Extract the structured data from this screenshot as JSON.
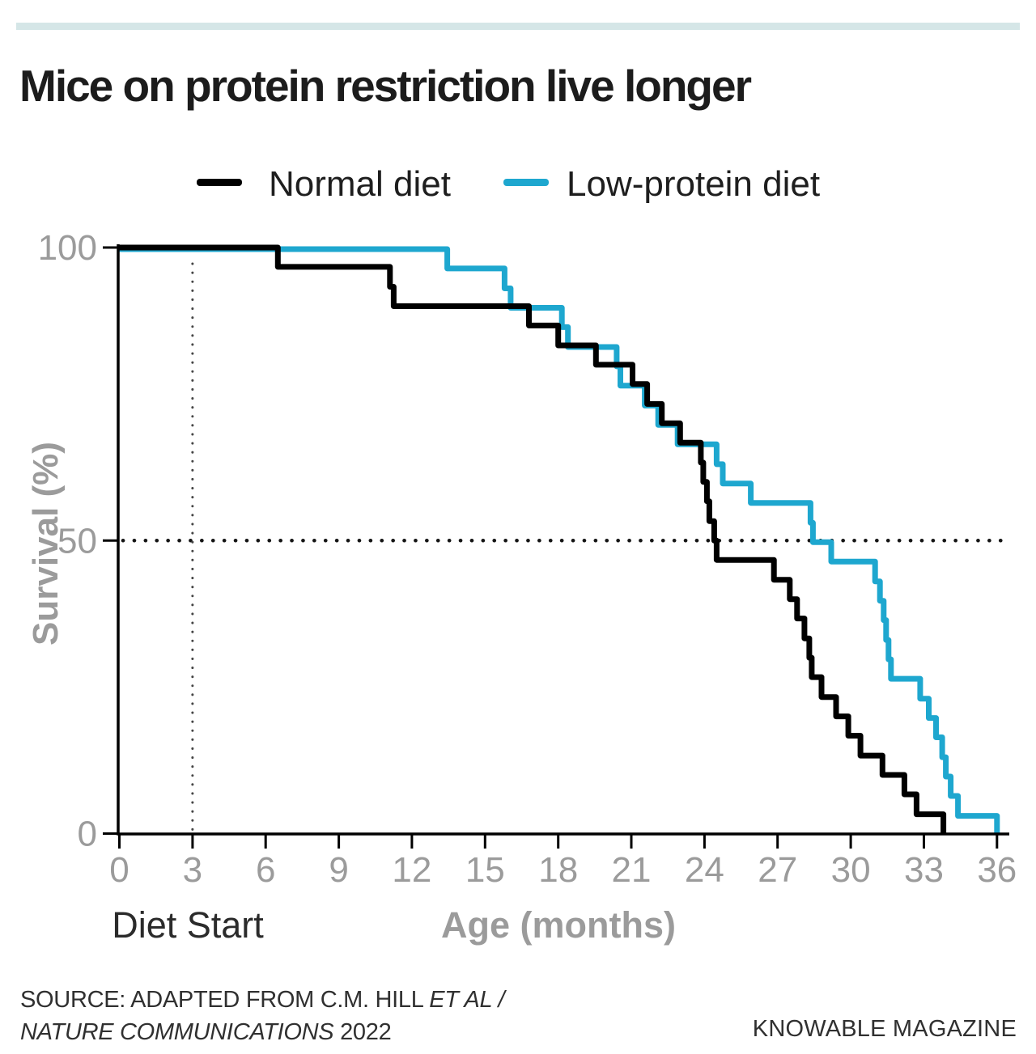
{
  "top_bar": {
    "color": "#d5e6e7"
  },
  "title": "Mice on protein restriction live longer",
  "legend": {
    "items": [
      {
        "label": "Normal diet",
        "color": "#000000"
      },
      {
        "label": "Low-protein diet",
        "color": "#1ea7cf"
      }
    ]
  },
  "axes": {
    "y_title": "Survival (%)",
    "x_title": "Age (months)",
    "diet_start_label": "Diet Start"
  },
  "chart_data": {
    "type": "line",
    "subtype": "survival-step",
    "title": "Mice on protein restriction live longer",
    "xlabel": "Age (months)",
    "ylabel": "Survival (%)",
    "xlim": [
      0,
      36
    ],
    "ylim": [
      0,
      100
    ],
    "x_ticks": [
      0,
      3,
      6,
      9,
      12,
      15,
      18,
      21,
      24,
      27,
      30,
      33,
      36
    ],
    "y_ticks": [
      0,
      50,
      100
    ],
    "grid": false,
    "legend_position": "top",
    "reference_lines": {
      "horizontal_dotted_y": 50,
      "vertical_dotted_x": 3,
      "vertical_dotted_label": "Diet Start"
    },
    "series": [
      {
        "name": "Normal diet",
        "color": "#000000",
        "steps": [
          [
            0,
            100
          ],
          [
            6.5,
            96.7
          ],
          [
            11.1,
            93.3
          ],
          [
            11.25,
            90
          ],
          [
            16.8,
            86.7
          ],
          [
            18.0,
            83.3
          ],
          [
            19.55,
            80
          ],
          [
            21.05,
            76.7
          ],
          [
            21.65,
            73.3
          ],
          [
            22.25,
            70
          ],
          [
            23.0,
            66.7
          ],
          [
            23.85,
            63.3
          ],
          [
            23.95,
            60
          ],
          [
            24.1,
            56.7
          ],
          [
            24.2,
            53.3
          ],
          [
            24.4,
            50
          ],
          [
            24.5,
            46.7
          ],
          [
            26.85,
            43.3
          ],
          [
            27.5,
            40
          ],
          [
            27.8,
            36.7
          ],
          [
            28.1,
            33.3
          ],
          [
            28.3,
            30
          ],
          [
            28.4,
            26.7
          ],
          [
            28.8,
            23.3
          ],
          [
            29.4,
            20
          ],
          [
            29.9,
            16.7
          ],
          [
            30.4,
            13.3
          ],
          [
            31.3,
            10
          ],
          [
            32.2,
            6.7
          ],
          [
            32.7,
            3.3
          ],
          [
            33.8,
            0
          ]
        ]
      },
      {
        "name": "Low-protein diet",
        "color": "#1ea7cf",
        "steps": [
          [
            0,
            100
          ],
          [
            13.45,
            96.7
          ],
          [
            15.8,
            93.3
          ],
          [
            16.05,
            90
          ],
          [
            18.15,
            86.7
          ],
          [
            18.4,
            83.3
          ],
          [
            20.4,
            80
          ],
          [
            20.55,
            76.7
          ],
          [
            21.55,
            73.3
          ],
          [
            22.1,
            70
          ],
          [
            22.9,
            66.7
          ],
          [
            24.5,
            63.3
          ],
          [
            24.75,
            60
          ],
          [
            25.9,
            56.7
          ],
          [
            28.35,
            53.3
          ],
          [
            28.45,
            50
          ],
          [
            29.2,
            46.7
          ],
          [
            31.0,
            43.3
          ],
          [
            31.2,
            40
          ],
          [
            31.35,
            36.7
          ],
          [
            31.45,
            33.3
          ],
          [
            31.55,
            30
          ],
          [
            31.65,
            26.7
          ],
          [
            32.85,
            23.3
          ],
          [
            33.2,
            20
          ],
          [
            33.5,
            16.7
          ],
          [
            33.75,
            13.3
          ],
          [
            33.9,
            10
          ],
          [
            34.1,
            6.7
          ],
          [
            34.4,
            3.3
          ],
          [
            36,
            0
          ]
        ]
      }
    ]
  },
  "source": {
    "line1_normal": "SOURCE: ADAPTED FROM C.M. HILL ",
    "line1_italic": "ET AL /",
    "line2_italic": "NATURE COMMUNICATIONS",
    "line2_normal": " 2022"
  },
  "credit": "KNOWABLE MAGAZINE"
}
